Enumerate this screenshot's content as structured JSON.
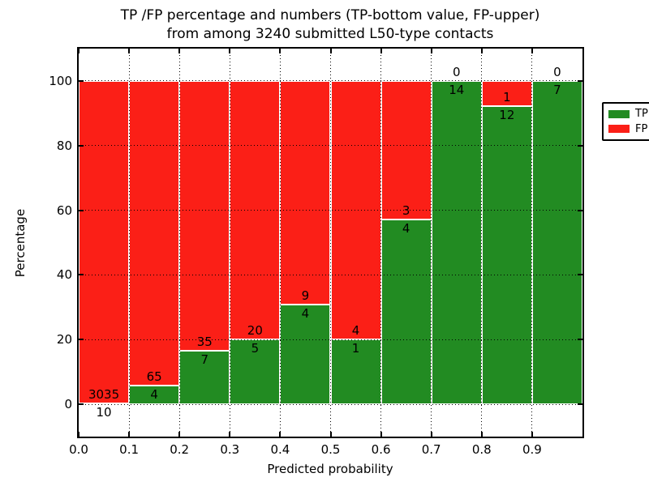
{
  "title": {
    "line1": "TP /FP percentage and numbers (TP-bottom value, FP-upper)",
    "line2": "from among 3240 submitted L50-type contacts"
  },
  "axes": {
    "xlabel": "Predicted probability",
    "ylabel": "Percentage",
    "x_tick_labels": [
      "0.0",
      "0.1",
      "0.2",
      "0.3",
      "0.4",
      "0.5",
      "0.6",
      "0.7",
      "0.8",
      "0.9"
    ],
    "x_tick_values": [
      0.0,
      0.1,
      0.2,
      0.3,
      0.4,
      0.5,
      0.6,
      0.7,
      0.8,
      0.9
    ],
    "y_tick_labels": [
      "0",
      "20",
      "40",
      "60",
      "80",
      "100"
    ],
    "y_tick_values": [
      0,
      20,
      40,
      60,
      80,
      100
    ],
    "xlim": [
      0.0,
      1.0
    ],
    "ylim": [
      -10,
      110
    ],
    "grid_style": "dotted"
  },
  "legend": {
    "position": "upper-right",
    "items": [
      {
        "label": "TP",
        "color": "#228b22"
      },
      {
        "label": "FP",
        "color": "#fb1f17"
      }
    ]
  },
  "colors": {
    "tp": "#228b22",
    "fp": "#fb1f17",
    "background": "#ffffff",
    "text": "#000000",
    "grid": "#000000",
    "bar_edge": "#ffffff"
  },
  "chart_data": {
    "type": "bar",
    "stacked": true,
    "normalized": "percent-per-bin",
    "title": "TP /FP percentage and numbers (TP-bottom value, FP-upper) from among 3240 submitted L50-type contacts",
    "xlabel": "Predicted probability",
    "ylabel": "Percentage",
    "total_contacts": 3240,
    "bin_edges": [
      0.0,
      0.1,
      0.2,
      0.3,
      0.4,
      0.5,
      0.6,
      0.7,
      0.8,
      0.9,
      1.0
    ],
    "series": [
      {
        "name": "TP",
        "color": "#228b22",
        "counts": [
          10,
          4,
          7,
          5,
          4,
          1,
          4,
          14,
          12,
          7
        ]
      },
      {
        "name": "FP",
        "color": "#fb1f17",
        "counts": [
          3035,
          65,
          35,
          20,
          9,
          4,
          3,
          0,
          1,
          0
        ]
      }
    ],
    "tp_percent_of_bin": [
      0.3,
      5.8,
      16.7,
      20.0,
      30.8,
      20.0,
      57.1,
      100.0,
      92.3,
      100.0
    ],
    "grid": true,
    "legend_position": "upper-right",
    "ylim": [
      -10,
      110
    ]
  }
}
